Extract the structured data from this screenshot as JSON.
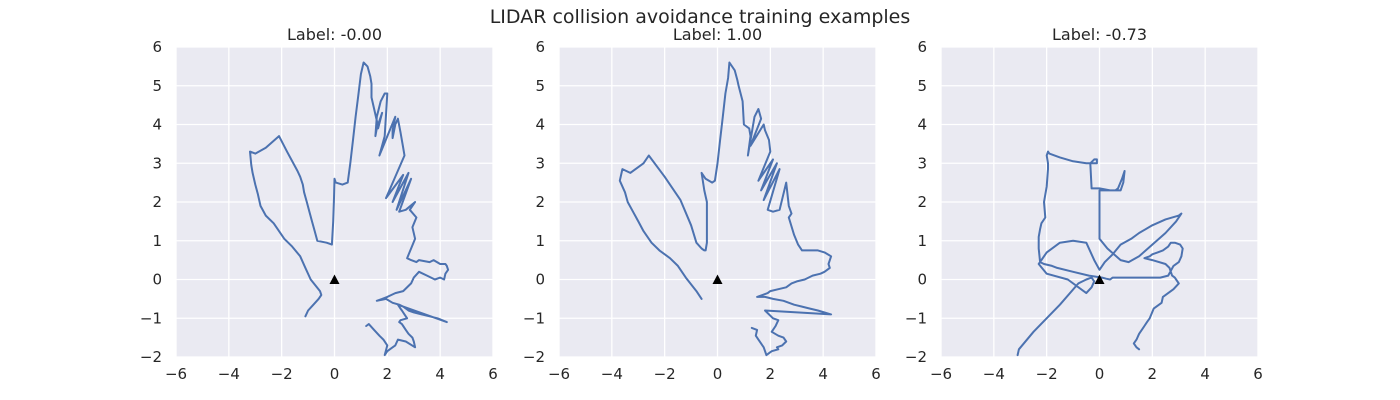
{
  "figure": {
    "title": "LIDAR collision avoidance training examples",
    "background": "#ffffff",
    "axes_bg": "#eaeaf2",
    "grid_color": "#ffffff",
    "line_color": "#4c72b0",
    "marker_color": "#000000"
  },
  "chart_data": [
    {
      "type": "line",
      "title": "Label: -0.00",
      "xlim": [
        -6,
        6
      ],
      "ylim": [
        -2,
        6
      ],
      "xticks": [
        "−6",
        "−4",
        "−2",
        "0",
        "2",
        "4",
        "6"
      ],
      "yticks": [
        "−2",
        "−1",
        "0",
        "1",
        "2",
        "3",
        "4",
        "5",
        "6"
      ],
      "grid": true,
      "marker": {
        "shape": "triangle",
        "x": 0,
        "y": 0
      },
      "series": [
        {
          "x": [
            -1.1,
            -1.0,
            -0.8,
            -0.6,
            -0.5,
            -0.55,
            -0.9,
            -1.1,
            -1.3,
            -1.6,
            -1.9,
            -2.1,
            -2.3,
            -2.6,
            -2.8,
            -2.9,
            -3.0,
            -3.1,
            -3.15,
            -3.2,
            -3.0,
            -2.6,
            -2.1,
            -1.8,
            -1.4,
            -1.3,
            -1.2,
            -1.15,
            -1.05,
            -0.95,
            -0.85,
            -0.75,
            -0.65,
            -0.3,
            -0.1,
            -0.05,
            -0.02,
            0.0,
            0.05,
            0.3,
            0.5,
            0.6,
            0.7,
            0.8,
            0.9,
            1.0,
            1.1,
            1.25,
            1.35,
            1.4,
            1.4,
            1.6,
            1.65,
            1.8,
            1.6,
            1.55,
            1.6,
            1.75,
            1.9,
            2.0,
            1.9,
            1.7,
            2.3,
            2.2,
            2.2,
            2.3,
            2.4,
            2.5,
            2.6,
            2.65,
            1.95,
            2.6,
            2.2,
            2.8,
            2.35,
            2.9,
            2.45,
            2.7,
            3.05,
            2.85,
            3.1,
            2.95,
            3.05,
            2.9,
            2.75,
            2.9,
            3.1,
            3.2,
            3.6,
            3.75,
            4.0,
            4.2,
            4.25,
            4.3,
            4.2,
            4.15,
            4.0,
            3.8,
            3.5,
            3.2,
            3.0,
            2.9,
            2.6,
            2.3,
            2.0,
            1.8,
            1.6,
            1.95,
            2.2,
            2.45,
            2.6,
            2.8,
            3.0,
            3.3,
            3.6,
            3.9,
            4.25,
            2.4,
            2.5,
            2.55,
            2.65,
            2.75,
            2.5,
            2.45,
            2.55,
            2.6,
            2.7,
            2.8,
            2.95,
            3.0,
            3.05,
            2.7,
            2.4,
            2.3,
            2.2,
            2.0,
            1.9,
            2.0,
            1.85,
            1.7,
            1.5,
            1.3,
            1.2
          ],
          "y": [
            -0.95,
            -0.8,
            -0.65,
            -0.5,
            -0.4,
            -0.3,
            0.0,
            0.3,
            0.6,
            0.85,
            1.05,
            1.25,
            1.45,
            1.65,
            1.9,
            2.2,
            2.45,
            2.75,
            2.95,
            3.3,
            3.25,
            3.4,
            3.7,
            3.3,
            2.8,
            2.65,
            2.45,
            2.25,
            2.0,
            1.75,
            1.5,
            1.25,
            1.0,
            0.95,
            0.9,
            1.5,
            2.1,
            2.6,
            2.5,
            2.45,
            2.5,
            3.0,
            3.6,
            4.2,
            4.75,
            5.3,
            5.6,
            5.5,
            5.25,
            5.05,
            4.7,
            4.1,
            3.9,
            4.3,
            3.9,
            3.7,
            4.2,
            4.6,
            4.8,
            4.8,
            3.7,
            3.2,
            4.2,
            3.85,
            3.65,
            4.0,
            4.15,
            3.8,
            3.4,
            3.2,
            2.1,
            2.7,
            2.0,
            2.75,
            1.8,
            2.6,
            1.75,
            1.8,
            2.0,
            1.8,
            1.6,
            1.35,
            1.05,
            0.8,
            0.55,
            0.5,
            0.45,
            0.5,
            0.45,
            0.5,
            0.4,
            0.4,
            0.35,
            0.25,
            0.15,
            0.0,
            0.05,
            0.0,
            0.1,
            0.2,
            0.05,
            -0.1,
            -0.3,
            -0.35,
            -0.45,
            -0.5,
            -0.55,
            -0.5,
            -0.6,
            -0.65,
            -0.7,
            -0.8,
            -0.85,
            -0.9,
            -0.95,
            -1.0,
            -1.1,
            -0.65,
            -0.75,
            -0.8,
            -0.9,
            -1.0,
            -1.05,
            -1.1,
            -1.15,
            -1.2,
            -1.3,
            -1.4,
            -1.5,
            -1.6,
            -1.75,
            -1.6,
            -1.55,
            -1.7,
            -1.75,
            -1.85,
            -1.95,
            -1.7,
            -1.55,
            -1.45,
            -1.3,
            -1.15,
            -1.2
          ]
        }
      ]
    },
    {
      "type": "line",
      "title": "Label: 1.00",
      "xlim": [
        -6,
        6
      ],
      "ylim": [
        -2,
        6
      ],
      "xticks": [
        "−6",
        "−4",
        "−2",
        "0",
        "2",
        "4",
        "6"
      ],
      "yticks": [
        "−2",
        "−1",
        "0",
        "1",
        "2",
        "3",
        "4",
        "5",
        "6"
      ],
      "grid": true,
      "marker": {
        "shape": "triangle",
        "x": 0,
        "y": 0
      },
      "series": [
        {
          "x": [
            -0.6,
            -0.8,
            -1.2,
            -1.5,
            -1.8,
            -2.2,
            -2.5,
            -2.8,
            -3.0,
            -3.2,
            -3.4,
            -3.5,
            -3.7,
            -3.6,
            -3.3,
            -2.8,
            -2.6,
            -2.0,
            -1.4,
            -1.0,
            -0.8,
            -0.6,
            -0.5,
            -0.45,
            -0.4,
            -0.4,
            -0.5,
            -0.6,
            -0.45,
            -0.2,
            -0.1,
            0.0,
            0.1,
            0.2,
            0.3,
            0.4,
            0.45,
            0.65,
            0.75,
            0.8,
            0.95,
            1.0,
            1.2,
            1.25,
            1.15,
            1.4,
            1.55,
            1.65,
            1.25,
            1.75,
            1.8,
            1.95,
            2.0,
            1.55,
            2.1,
            1.65,
            2.25,
            1.75,
            2.35,
            1.9,
            2.1,
            2.35,
            2.6,
            2.7,
            2.8,
            2.7,
            2.9,
            3.05,
            3.2,
            3.55,
            3.8,
            4.05,
            4.3,
            4.2,
            4.25,
            4.05,
            3.9,
            3.6,
            3.3,
            3.0,
            2.8,
            2.6,
            2.3,
            2.0,
            1.9,
            1.5,
            1.8,
            2.1,
            2.5,
            2.9,
            3.2,
            3.5,
            3.8,
            4.3,
            1.8,
            2.1,
            2.3,
            2.2,
            2.05,
            2.3,
            2.5,
            2.6,
            2.45,
            2.25,
            2.3,
            2.05,
            1.85,
            1.75,
            1.55,
            1.45,
            1.5,
            1.3
          ],
          "y": [
            -0.5,
            -0.3,
            0.05,
            0.35,
            0.55,
            0.75,
            0.95,
            1.25,
            1.5,
            1.75,
            2.0,
            2.25,
            2.55,
            2.85,
            2.75,
            3.0,
            3.2,
            2.65,
            2.05,
            1.4,
            0.95,
            0.8,
            0.75,
            0.75,
            0.95,
            2.0,
            2.3,
            2.75,
            2.6,
            2.5,
            2.55,
            3.0,
            3.6,
            4.2,
            4.8,
            5.2,
            5.6,
            5.4,
            5.15,
            5.0,
            4.6,
            4.0,
            3.9,
            3.7,
            3.2,
            4.2,
            4.4,
            4.15,
            3.45,
            4.0,
            3.85,
            3.6,
            3.3,
            2.55,
            3.1,
            2.3,
            3.0,
            2.05,
            2.85,
            1.8,
            1.75,
            1.8,
            2.5,
            1.9,
            1.7,
            1.6,
            1.15,
            0.9,
            0.75,
            0.75,
            0.75,
            0.7,
            0.6,
            0.4,
            0.3,
            0.2,
            0.15,
            0.1,
            0.0,
            -0.05,
            -0.1,
            -0.2,
            -0.25,
            -0.3,
            -0.35,
            -0.45,
            -0.45,
            -0.5,
            -0.55,
            -0.65,
            -0.7,
            -0.75,
            -0.8,
            -0.9,
            -0.8,
            -1.0,
            -1.05,
            -1.2,
            -1.35,
            -1.45,
            -1.5,
            -1.6,
            -1.7,
            -1.75,
            -1.8,
            -1.85,
            -1.95,
            -1.75,
            -1.55,
            -1.45,
            -1.3,
            -1.25
          ]
        }
      ]
    },
    {
      "type": "line",
      "title": "Label: -0.73",
      "xlim": [
        -6,
        6
      ],
      "ylim": [
        -2,
        6
      ],
      "xticks": [
        "−6",
        "−4",
        "−2",
        "0",
        "2",
        "4",
        "6"
      ],
      "yticks": [
        "−2",
        "−1",
        "0",
        "1",
        "2",
        "3",
        "4",
        "5",
        "6"
      ],
      "grid": true,
      "marker": {
        "shape": "triangle",
        "x": 0,
        "y": 0
      },
      "series": [
        {
          "x": [
            -3.1,
            -3.05,
            -2.5,
            -1.5,
            -0.8,
            -0.5,
            -0.3,
            -0.2,
            -0.3,
            -0.5,
            -1.2,
            -2.0,
            -2.3,
            -2.0,
            -1.5,
            -1.0,
            -0.5,
            -0.2,
            0.0,
            0.2,
            0.5,
            0.8,
            1.2,
            1.5,
            2.0,
            2.5,
            3.0,
            3.1,
            2.9,
            2.5,
            2.0,
            1.5,
            1.1,
            0.8,
            0.3,
            0.0,
            0.0,
            0.5,
            0.8,
            0.9,
            0.95,
            0.85,
            0.7,
            0.6,
            0.5,
            0.4,
            0.0,
            -0.3,
            -0.35,
            -0.2,
            -0.1,
            -0.1,
            -0.5,
            -1.0,
            -1.5,
            -1.9,
            -1.95,
            -2.0,
            -1.95,
            -1.95,
            -2.0,
            -2.1,
            -2.05,
            -2.2,
            -2.25,
            -2.3,
            -2.3,
            -2.25,
            -2.1,
            -1.8,
            -1.6,
            -1.0,
            -0.4,
            0.1,
            0.25,
            0.4,
            0.5,
            0.9,
            1.3,
            1.7,
            2.3,
            2.6,
            2.8,
            3.0,
            3.1,
            3.15,
            3.05,
            2.85,
            2.7,
            2.6,
            2.4,
            2.2,
            2.0,
            1.9,
            1.7,
            2.0,
            2.5,
            2.65,
            2.75,
            2.85,
            2.9,
            3.0,
            2.8,
            2.6,
            2.4,
            2.35,
            2.05,
            1.9,
            1.8,
            1.7,
            1.5,
            1.4,
            1.3,
            1.4,
            1.5
          ],
          "y": [
            -1.95,
            -1.8,
            -1.35,
            -0.65,
            -0.1,
            0.0,
            0.05,
            -0.05,
            -0.2,
            -0.35,
            0.0,
            0.15,
            0.4,
            0.7,
            0.95,
            1.0,
            0.95,
            0.5,
            0.25,
            0.45,
            0.65,
            0.9,
            1.05,
            1.2,
            1.4,
            1.55,
            1.65,
            1.7,
            1.5,
            1.2,
            0.9,
            0.6,
            0.45,
            0.5,
            0.8,
            1.05,
            2.3,
            2.3,
            2.3,
            2.5,
            2.8,
            2.6,
            2.35,
            2.3,
            2.3,
            2.3,
            2.35,
            2.35,
            3.0,
            3.1,
            3.1,
            3.0,
            3.0,
            3.05,
            3.15,
            3.25,
            3.3,
            3.2,
            3.0,
            2.85,
            2.4,
            2.0,
            1.6,
            1.45,
            1.3,
            1.1,
            0.8,
            0.45,
            0.4,
            0.35,
            0.3,
            0.2,
            0.1,
            0.05,
            0.02,
            0.0,
            0.05,
            0.05,
            0.05,
            0.05,
            0.05,
            0.1,
            0.35,
            0.45,
            0.6,
            0.8,
            0.9,
            0.95,
            0.95,
            0.85,
            0.75,
            0.7,
            0.65,
            0.6,
            0.55,
            0.5,
            0.4,
            0.3,
            0.1,
            0.05,
            0.0,
            -0.1,
            -0.25,
            -0.35,
            -0.45,
            -0.6,
            -0.75,
            -1.0,
            -1.1,
            -1.2,
            -1.4,
            -1.55,
            -1.65,
            -1.75,
            -1.8
          ]
        }
      ]
    }
  ]
}
